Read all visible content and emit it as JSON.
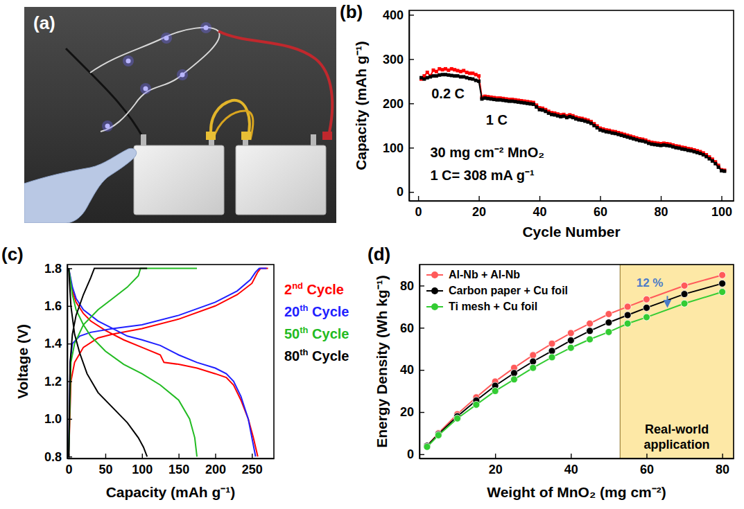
{
  "chart_data": [
    {
      "type": "image",
      "panel_label": "(a)"
    },
    {
      "type": "line",
      "panel_label": "(b)",
      "x_label": "Cycle Number",
      "y_label": "Capacity (mAh g⁻¹)",
      "xlim": [
        -3,
        104
      ],
      "xticks": [
        0,
        20,
        40,
        60,
        80,
        100
      ],
      "ylim": [
        -20,
        410
      ],
      "yticks": [
        0,
        100,
        200,
        300,
        400
      ],
      "x": [
        1,
        2,
        3,
        4,
        5,
        6,
        7,
        8,
        9,
        10,
        11,
        12,
        13,
        14,
        15,
        16,
        17,
        18,
        19,
        20,
        21,
        22,
        23,
        24,
        25,
        26,
        27,
        28,
        29,
        30,
        31,
        32,
        33,
        34,
        35,
        36,
        37,
        38,
        39,
        40,
        41,
        42,
        43,
        44,
        45,
        46,
        47,
        48,
        49,
        50,
        51,
        52,
        53,
        54,
        55,
        56,
        57,
        58,
        59,
        60,
        61,
        62,
        63,
        64,
        65,
        66,
        67,
        68,
        69,
        70,
        71,
        72,
        73,
        74,
        75,
        76,
        77,
        78,
        79,
        80,
        81,
        82,
        83,
        84,
        85,
        86,
        87,
        88,
        89,
        90,
        91,
        92,
        93,
        94,
        95,
        96,
        97,
        98,
        99,
        100,
        101
      ],
      "series": [
        {
          "color": "#ff0000",
          "marker": "square",
          "values": [
            255,
            262,
            270,
            262,
            275,
            272,
            278,
            276,
            278,
            275,
            278,
            276,
            274,
            272,
            274,
            270,
            268,
            268,
            265,
            262,
            214,
            216,
            215,
            214,
            213,
            212,
            212,
            211,
            210,
            209,
            209,
            208,
            207,
            206,
            205,
            204,
            203,
            202,
            196,
            190,
            189,
            186,
            182,
            179,
            178,
            176,
            174,
            175,
            172,
            174,
            172,
            169,
            167,
            166,
            164,
            162,
            159,
            154,
            149,
            144,
            142,
            140,
            139,
            137,
            136,
            134,
            132,
            130,
            128,
            126,
            124,
            122,
            120,
            119,
            117,
            114,
            112,
            111,
            110,
            109,
            110,
            109,
            108,
            106,
            104,
            103,
            101,
            100,
            98,
            97,
            95,
            93,
            91,
            88,
            84,
            79,
            74,
            68,
            60,
            50,
            49
          ]
        },
        {
          "color": "#000000",
          "marker": "square",
          "values": [
            258,
            255,
            258,
            260,
            262,
            262,
            264,
            265,
            265,
            264,
            263,
            262,
            262,
            260,
            260,
            258,
            256,
            255,
            252,
            250,
            210,
            212,
            211,
            210,
            209,
            208,
            208,
            207,
            206,
            205,
            205,
            204,
            203,
            202,
            201,
            200,
            199,
            198,
            192,
            186,
            185,
            182,
            178,
            175,
            174,
            172,
            170,
            171,
            168,
            170,
            168,
            165,
            163,
            162,
            160,
            158,
            155,
            150,
            145,
            140,
            138,
            136,
            135,
            133,
            132,
            130,
            128,
            126,
            124,
            122,
            120,
            118,
            116,
            115,
            113,
            110,
            108,
            107,
            106,
            105,
            106,
            105,
            104,
            102,
            100,
            99,
            97,
            96,
            94,
            93,
            91,
            89,
            87,
            84,
            80,
            75,
            70,
            64,
            56,
            48,
            47
          ]
        }
      ],
      "annotations": [
        {
          "text": "0.2 C"
        },
        {
          "text": "1 C"
        },
        {
          "text": "30 mg cm⁻² MnO₂"
        },
        {
          "text": "1 C= 308 mA g⁻¹"
        }
      ]
    },
    {
      "type": "line",
      "panel_label": "(c)",
      "x_label": "Capacity (mAh g⁻¹)",
      "y_label": "Voltage (V)",
      "xlim": [
        -2,
        280
      ],
      "xticks": [
        0,
        50,
        100,
        150,
        200,
        250
      ],
      "ylim": [
        0.79,
        1.82
      ],
      "yticks": [
        0.8,
        {
          "value": 1,
          "label": "1.0"
        },
        1.2,
        1.4,
        1.6,
        1.8
      ],
      "legend": "right",
      "series": [
        {
          "name": "2nd Cycle",
          "color": "#ff0000",
          "x": [
            0,
            5,
            10,
            20,
            30,
            50,
            75,
            100,
            125,
            130,
            150,
            175,
            200,
            215,
            225,
            235,
            245,
            252,
            258,
            null,
            0,
            3,
            8,
            20,
            40,
            60,
            100,
            150,
            200,
            230,
            250,
            258,
            262,
            272
          ],
          "values": [
            1.8,
            1.68,
            1.62,
            1.56,
            1.52,
            1.47,
            1.42,
            1.38,
            1.34,
            1.3,
            1.29,
            1.27,
            1.24,
            1.22,
            1.18,
            1.1,
            1.0,
            0.9,
            0.8,
            null,
            0.8,
            1.2,
            1.3,
            1.38,
            1.43,
            1.45,
            1.48,
            1.53,
            1.6,
            1.66,
            1.72,
            1.78,
            1.8,
            1.8
          ]
        },
        {
          "name": "20th Cycle",
          "color": "#1f1fff",
          "x": [
            0,
            5,
            10,
            20,
            40,
            60,
            80,
            100,
            125,
            150,
            175,
            200,
            215,
            225,
            235,
            245,
            250,
            255,
            null,
            0,
            2,
            5,
            15,
            30,
            60,
            100,
            150,
            200,
            230,
            248,
            255,
            260,
            270
          ],
          "values": [
            1.8,
            1.7,
            1.64,
            1.58,
            1.52,
            1.48,
            1.44,
            1.42,
            1.39,
            1.34,
            1.3,
            1.27,
            1.24,
            1.2,
            1.12,
            1.0,
            0.9,
            0.8,
            null,
            0.8,
            1.3,
            1.4,
            1.44,
            1.46,
            1.48,
            1.5,
            1.55,
            1.62,
            1.68,
            1.74,
            1.78,
            1.8,
            1.8
          ]
        },
        {
          "name": "50th Cycle",
          "color": "#22bb22",
          "x": [
            0,
            5,
            10,
            20,
            30,
            50,
            75,
            100,
            125,
            150,
            165,
            172,
            175,
            null,
            0,
            3,
            8,
            20,
            40,
            60,
            80,
            95,
            98,
            175
          ],
          "values": [
            1.8,
            1.66,
            1.58,
            1.5,
            1.44,
            1.36,
            1.29,
            1.24,
            1.18,
            1.1,
            1.0,
            0.9,
            0.8,
            null,
            0.8,
            1.3,
            1.4,
            1.5,
            1.58,
            1.64,
            1.7,
            1.76,
            1.8,
            1.8
          ]
        },
        {
          "name": "80th Cycle",
          "color": "#000000",
          "x": [
            0,
            3,
            8,
            15,
            25,
            40,
            60,
            80,
            95,
            102,
            107,
            null,
            0,
            2,
            5,
            10,
            20,
            30,
            35,
            107
          ],
          "values": [
            1.8,
            1.6,
            1.45,
            1.35,
            1.24,
            1.14,
            1.06,
            0.98,
            0.9,
            0.85,
            0.8,
            null,
            0.8,
            1.3,
            1.45,
            1.55,
            1.66,
            1.75,
            1.8,
            1.8
          ]
        }
      ]
    },
    {
      "type": "line",
      "panel_label": "(d)",
      "x_label": "Weight of MnO₂ (mg cm⁻²)",
      "y_label": "Energy Density (Wh kg⁻¹)",
      "xlim": [
        0,
        83
      ],
      "xticks": [
        20,
        40,
        60,
        80
      ],
      "ylim": [
        -2,
        90
      ],
      "yticks": [
        0,
        20,
        40,
        60,
        80
      ],
      "legend": "upper left",
      "marker": "circle",
      "x": [
        2,
        5,
        10,
        15,
        20,
        25,
        30,
        35,
        40,
        45,
        50,
        55,
        60,
        70,
        80
      ],
      "series": [
        {
          "name": "Al-Nb + Al-Nb",
          "color": "#ff5a5a",
          "values": [
            4,
            10,
            19,
            27,
            34.5,
            41,
            47,
            52.5,
            57.5,
            62,
            66.5,
            70,
            73.5,
            80,
            85
          ]
        },
        {
          "name": "Carbon paper + Cu foil",
          "color": "#000000",
          "values": [
            4,
            9.5,
            18,
            25.5,
            32.5,
            38.5,
            44,
            49,
            54,
            58.5,
            62.5,
            66,
            69.5,
            76,
            81
          ]
        },
        {
          "name": "Ti mesh + Cu foil",
          "color": "#33cc33",
          "values": [
            3.5,
            9,
            17,
            23.5,
            30,
            35.5,
            41,
            46,
            50.5,
            54.5,
            58,
            62,
            65,
            71.5,
            77
          ]
        }
      ],
      "highlight": {
        "label": "Real-world application",
        "x": 53
      },
      "annotations": [
        {
          "text": "12 %",
          "color": "#4a7bc8"
        }
      ]
    }
  ]
}
